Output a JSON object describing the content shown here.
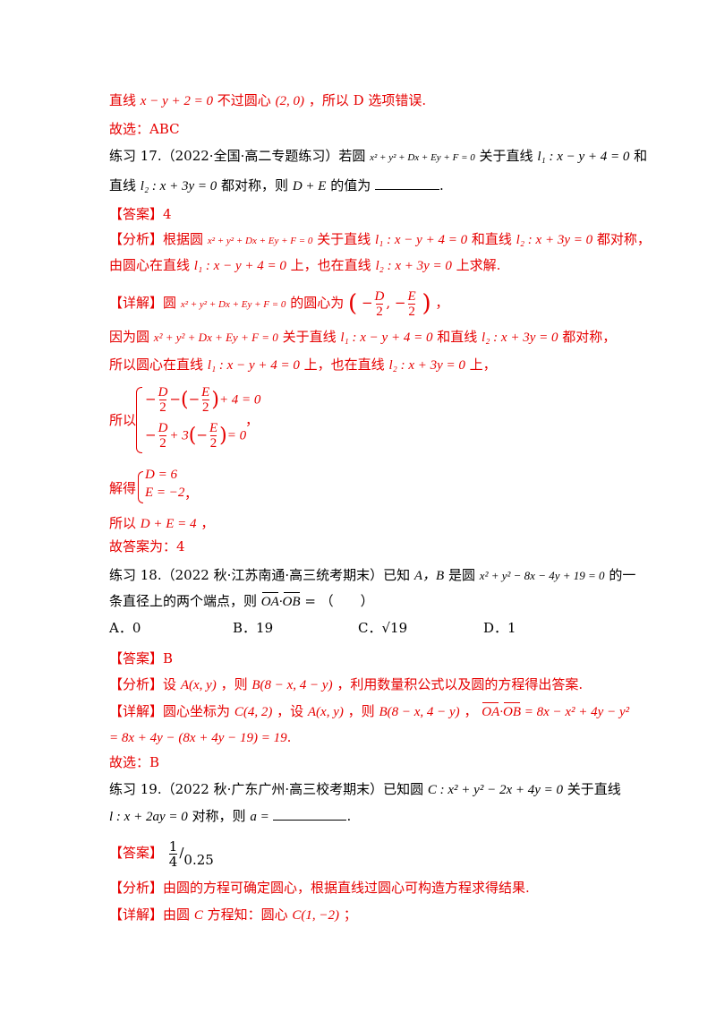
{
  "l01": {
    "a": "直线",
    "m1": "x − y + 2 = 0",
    "b": "不过圆心",
    "m2": "(2, 0)",
    "c": "，所以 D 选项错误."
  },
  "l02": {
    "a": "故选：ABC"
  },
  "l03": {
    "a": "练习 17.（2022·全国·高二专题练习）若圆",
    "m1": "x² + y² + Dx + Ey + F = 0",
    "b": "关于直线",
    "m2": "l₁ : x − y + 4 = 0",
    "c": "和"
  },
  "l04": {
    "a": "直线",
    "m1": "l₂ : x + 3y = 0",
    "b": "都对称，则",
    "m2": "D + E",
    "c": "的值为",
    "d": "."
  },
  "l05": {
    "tag": "【答案】",
    "a": "4"
  },
  "l06": {
    "tag": "【分析】",
    "a": "根据圆",
    "m1": "x² + y² + Dx + Ey + F = 0",
    "b": "关于直线",
    "m2": "l₁ : x − y + 4 = 0",
    "c": "和直线",
    "m3": "l₂ : x + 3y = 0",
    "d": "都对称，"
  },
  "l07": {
    "a": "由圆心在直线",
    "m1": "l₁ : x − y + 4 = 0",
    "b": "上，也在直线",
    "m2": "l₂ : x + 3y = 0",
    "c": "上求解."
  },
  "l08": {
    "tag": "【详解】",
    "a": "圆",
    "m1": "x² + y² + Dx + Ey + F = 0",
    "b": "的圆心为",
    "fn1": "D",
    "fd1": "2",
    "fn2": "E",
    "fd2": "2",
    "c": "，"
  },
  "l09": {
    "a": "因为圆",
    "m1": "x² + y² + Dx + Ey + F = 0",
    "b": "关于直线",
    "m2": "l₁ : x − y + 4 = 0",
    "c": "和直线",
    "m3": "l₂ : x + 3y = 0",
    "d": "都对称，"
  },
  "l10": {
    "a": "所以圆心在直线",
    "m1": "l₁ : x − y + 4 = 0",
    "b": "上，也在直线",
    "m2": "l₂ : x + 3y = 0",
    "c": "上，"
  },
  "l11": {
    "a": "所以",
    "e1a": "D",
    "e1b": "2",
    "e1c": "E",
    "e1d": "2",
    "e1e": "+ 4 = 0",
    "e2a": "D",
    "e2b": "2",
    "e2c": "+ 3",
    "e2d": "E",
    "e2e": "2",
    "e2f": "= 0",
    "c": "，"
  },
  "l12": {
    "a": "解得",
    "e1": "D = 6",
    "e2": "E = −2",
    "c": "，"
  },
  "l13": {
    "a": "所以",
    "m1": "D + E = 4",
    "c": "，"
  },
  "l14": {
    "a": "故答案为：4"
  },
  "l15": {
    "a": "练习 18.（2022 秋·江苏南通·高三统考期末）已知",
    "m1": "A，B",
    "b": "是圆",
    "m2": "x² + y² − 8x − 4y + 19 = 0",
    "c": "的一"
  },
  "l16": {
    "a": "条直径上的两个端点，则",
    "m1": "OA",
    "m2": "·",
    "m3": "OB",
    "m4": " = （　　）"
  },
  "opts": [
    {
      "label": "A．0"
    },
    {
      "label": "B．19"
    },
    {
      "label": "C．√19"
    },
    {
      "label": "D．1"
    }
  ],
  "l17": {
    "tag": "【答案】",
    "a": "B"
  },
  "l18": {
    "tag": "【分析】",
    "a": "设",
    "m1": "A(x, y)",
    "b": "，则",
    "m2": "B(8 − x, 4 − y)",
    "c": "，利用数量积公式以及圆的方程得出答案."
  },
  "l19": {
    "tag": "【详解】",
    "a": "圆心坐标为",
    "m1": "C(4, 2)",
    "b": "，设",
    "m2": "A(x, y)",
    "c": "，则",
    "m3": "B(8 − x, 4 − y)",
    "d": "，",
    "m4a": "OA",
    "m4b": "·",
    "m4c": "OB",
    "m4d": " = 8x − x² + 4y − y²"
  },
  "l20": {
    "m1": "= 8x + 4y − (8x + 4y − 19) = 19",
    "c": "."
  },
  "l21": {
    "a": "故选：B"
  },
  "l22": {
    "a": "练习 19.（2022 秋·广东广州·高三校考期末）已知圆",
    "m1": "C : x² + y² − 2x + 4y = 0",
    "b": "关于直线"
  },
  "l23": {
    "m1": "l : x + 2ay = 0",
    "a": "对称，则",
    "m2": "a =",
    "d": "."
  },
  "l24": {
    "tag": "【答案】",
    "fn": "1",
    "fd": "4",
    "a": "/",
    "b": "0.25"
  },
  "l25": {
    "tag": "【分析】",
    "a": "由圆的方程可确定圆心，根据直线过圆心可构造方程求得结果."
  },
  "l26": {
    "tag": "【详解】",
    "a": "由圆",
    "m1": "C",
    "b": "方程知：圆心",
    "m2": "C(1, −2)",
    "c": "；"
  },
  "colors": {
    "red": "#e60000",
    "black": "#000000"
  }
}
